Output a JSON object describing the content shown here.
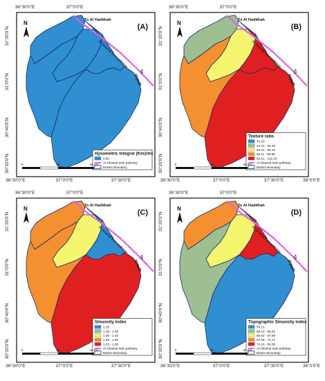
{
  "figure": {
    "coordinates": {
      "lon_labels": [
        "36°30'0\"E",
        "37°0'0\"E",
        "37°30'0\"E",
        "38°0'0\"E"
      ],
      "lat_labels": [
        "31°20'0\"N",
        "31°0'0\"N",
        "30°40'0\"N",
        "30°20'0\"N"
      ]
    },
    "map_common": {
      "north_label": "N",
      "rail_label": "Al-Shamal train pathway",
      "dest_north": "To Al Hadithah",
      "dest_south_a": "To",
      "dest_south_b": "Riyadh",
      "scale_labels": [
        "0",
        "20",
        "40 Km"
      ]
    },
    "panels": [
      {
        "id": "A",
        "letter": "(A)",
        "legend": {
          "title": "Hysometric Integral (Km2/m)",
          "items": [
            {
              "label": "0.50",
              "color": "#2f8fd0"
            },
            {
              "label": "Al-Shamal train pathway",
              "color": "#d24ad2",
              "kind": "line"
            },
            {
              "label": "Basins Boundary",
              "color": "#1a2a6a",
              "kind": "box"
            }
          ]
        },
        "basin_colors": {
          "b1": "#2f8fd0",
          "b2": "#2f8fd0",
          "b3": "#2f8fd0",
          "b4": "#2f8fd0",
          "b5": "#2f8fd0",
          "b6": "#2f8fd0"
        }
      },
      {
        "id": "B",
        "letter": "(B)",
        "legend": {
          "title": "Texture ratio",
          "items": [
            {
              "label": "43.20",
              "color": "#2f8fd0"
            },
            {
              "label": "43.21 - 53.40",
              "color": "#9dbf92"
            },
            {
              "label": "53.41 - 66.10",
              "color": "#f5f570"
            },
            {
              "label": "66.11 - 82.60",
              "color": "#f59030"
            },
            {
              "label": "82.61 - 132.30",
              "color": "#e02020"
            },
            {
              "label": "Al-Shamal train pathway",
              "color": "#d24ad2",
              "kind": "line"
            },
            {
              "label": "Basins Boundary",
              "color": "#1a2a6a",
              "kind": "box"
            }
          ]
        },
        "basin_colors": {
          "b1": "#9dbf92",
          "b2": "#f5f570",
          "b3": "#2f8fd0",
          "b4": "#e02020",
          "b5": "#f59030",
          "b6": "#e02020"
        }
      },
      {
        "id": "C",
        "letter": "(C)",
        "legend": {
          "title": "Sinuosity index",
          "items": [
            {
              "label": "1.19",
              "color": "#2f8fd0"
            },
            {
              "label": "1.19 - 1.29",
              "color": "#9dbf92"
            },
            {
              "label": "1.30 - 1.34",
              "color": "#f5f570"
            },
            {
              "label": "1.35 - 1.52",
              "color": "#f59030"
            },
            {
              "label": "1.53 - 1.69",
              "color": "#e02020"
            },
            {
              "label": "Al-Shamal train pathway",
              "color": "#d24ad2",
              "kind": "line"
            },
            {
              "label": "Basins Boundary",
              "color": "#1a2a6a",
              "kind": "box"
            }
          ]
        },
        "basin_colors": {
          "b1": "#f59030",
          "b2": "#f5f570",
          "b3": "#9dbf92",
          "b4": "#2f8fd0",
          "b5": "#f59030",
          "b6": "#e02020"
        }
      },
      {
        "id": "D",
        "letter": "(D)",
        "legend": {
          "title": "Topographic Sinuosity index",
          "items": [
            {
              "label": "59.12",
              "color": "#2f8fd0"
            },
            {
              "label": "59.13 - 65.61",
              "color": "#9dbf92"
            },
            {
              "label": "65.62 - 67.56",
              "color": "#f5f570"
            },
            {
              "label": "67.56 - 74.17",
              "color": "#f59030"
            },
            {
              "label": "74.18 - 84.86",
              "color": "#e02020"
            },
            {
              "label": "Al-Shamal train pathway",
              "color": "#d24ad2",
              "kind": "line"
            },
            {
              "label": "Basins Boundary",
              "color": "#1a2a6a",
              "kind": "box"
            }
          ]
        },
        "basin_colors": {
          "b1": "#f59030",
          "b2": "#f5f570",
          "b3": "#f59030",
          "b4": "#e02020",
          "b5": "#9dbf92",
          "b6": "#2f8fd0"
        }
      }
    ]
  }
}
